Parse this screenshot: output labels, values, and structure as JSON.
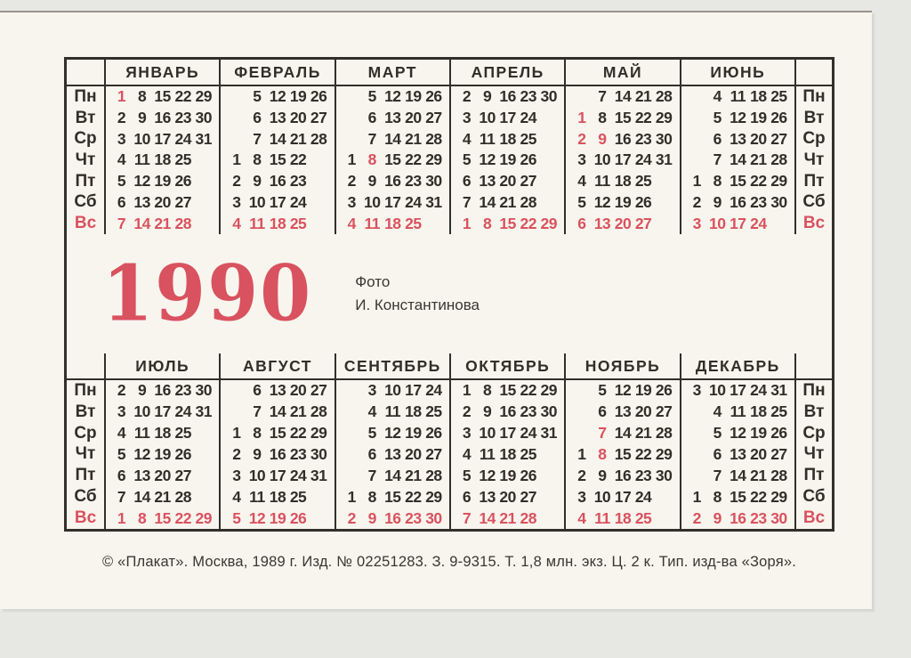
{
  "colors": {
    "accent_red": "#d9525f",
    "ink": "#322e28",
    "card_background": "#f8f5ee"
  },
  "year": "1990",
  "photo_credit": {
    "line1": "Фото",
    "line2": "И. Константинова"
  },
  "footer": {
    "imprint": "© «Плакат». Москва, 1989 г. Изд. № 02251283. З. 9-9315. Т. 1,8 млн. экз. Ц. 2 к. Тип. изд-ва «Зоря»."
  },
  "weekdays": [
    "Пн",
    "Вт",
    "Ср",
    "Чт",
    "Пт",
    "Сб",
    "Вс"
  ],
  "calendar": {
    "top_months": [
      {
        "name": "ЯНВАРЬ",
        "red_days": [
          1
        ],
        "rows": [
          [
            "1",
            "8",
            "15",
            "22",
            "29"
          ],
          [
            "2",
            "9",
            "16",
            "23",
            "30"
          ],
          [
            "3",
            "10",
            "17",
            "24",
            "31"
          ],
          [
            "4",
            "11",
            "18",
            "25",
            ""
          ],
          [
            "5",
            "12",
            "19",
            "26",
            ""
          ],
          [
            "6",
            "13",
            "20",
            "27",
            ""
          ],
          [
            "7",
            "14",
            "21",
            "28",
            ""
          ]
        ]
      },
      {
        "name": "ФЕВРАЛЬ",
        "red_days": [],
        "rows": [
          [
            "",
            "5",
            "12",
            "19",
            "26"
          ],
          [
            "",
            "6",
            "13",
            "20",
            "27"
          ],
          [
            "",
            "7",
            "14",
            "21",
            "28"
          ],
          [
            "1",
            "8",
            "15",
            "22",
            ""
          ],
          [
            "2",
            "9",
            "16",
            "23",
            ""
          ],
          [
            "3",
            "10",
            "17",
            "24",
            ""
          ],
          [
            "4",
            "11",
            "18",
            "25",
            ""
          ]
        ]
      },
      {
        "name": "МАРТ",
        "red_days": [
          8
        ],
        "rows": [
          [
            "",
            "5",
            "12",
            "19",
            "26"
          ],
          [
            "",
            "6",
            "13",
            "20",
            "27"
          ],
          [
            "",
            "7",
            "14",
            "21",
            "28"
          ],
          [
            "1",
            "8",
            "15",
            "22",
            "29"
          ],
          [
            "2",
            "9",
            "16",
            "23",
            "30"
          ],
          [
            "3",
            "10",
            "17",
            "24",
            "31"
          ],
          [
            "4",
            "11",
            "18",
            "25",
            ""
          ]
        ]
      },
      {
        "name": "АПРЕЛЬ",
        "red_days": [],
        "rows": [
          [
            "2",
            "9",
            "16",
            "23",
            "30"
          ],
          [
            "3",
            "10",
            "17",
            "24",
            ""
          ],
          [
            "4",
            "11",
            "18",
            "25",
            ""
          ],
          [
            "5",
            "12",
            "19",
            "26",
            ""
          ],
          [
            "6",
            "13",
            "20",
            "27",
            ""
          ],
          [
            "7",
            "14",
            "21",
            "28",
            ""
          ],
          [
            "1",
            "8",
            "15",
            "22",
            "29"
          ]
        ]
      },
      {
        "name": "МАЙ",
        "red_days": [
          1,
          2,
          9
        ],
        "rows": [
          [
            "",
            "7",
            "14",
            "21",
            "28"
          ],
          [
            "1",
            "8",
            "15",
            "22",
            "29"
          ],
          [
            "2",
            "9",
            "16",
            "23",
            "30"
          ],
          [
            "3",
            "10",
            "17",
            "24",
            "31"
          ],
          [
            "4",
            "11",
            "18",
            "25",
            ""
          ],
          [
            "5",
            "12",
            "19",
            "26",
            ""
          ],
          [
            "6",
            "13",
            "20",
            "27",
            ""
          ]
        ]
      },
      {
        "name": "ИЮНЬ",
        "red_days": [],
        "rows": [
          [
            "",
            "4",
            "11",
            "18",
            "25"
          ],
          [
            "",
            "5",
            "12",
            "19",
            "26"
          ],
          [
            "",
            "6",
            "13",
            "20",
            "27"
          ],
          [
            "",
            "7",
            "14",
            "21",
            "28"
          ],
          [
            "1",
            "8",
            "15",
            "22",
            "29"
          ],
          [
            "2",
            "9",
            "16",
            "23",
            "30"
          ],
          [
            "3",
            "10",
            "17",
            "24",
            ""
          ]
        ]
      }
    ],
    "bottom_months": [
      {
        "name": "ИЮЛЬ",
        "red_days": [],
        "rows": [
          [
            "2",
            "9",
            "16",
            "23",
            "30"
          ],
          [
            "3",
            "10",
            "17",
            "24",
            "31"
          ],
          [
            "4",
            "11",
            "18",
            "25",
            ""
          ],
          [
            "5",
            "12",
            "19",
            "26",
            ""
          ],
          [
            "6",
            "13",
            "20",
            "27",
            ""
          ],
          [
            "7",
            "14",
            "21",
            "28",
            ""
          ],
          [
            "1",
            "8",
            "15",
            "22",
            "29"
          ]
        ]
      },
      {
        "name": "АВГУСТ",
        "red_days": [],
        "rows": [
          [
            "",
            "6",
            "13",
            "20",
            "27"
          ],
          [
            "",
            "7",
            "14",
            "21",
            "28"
          ],
          [
            "1",
            "8",
            "15",
            "22",
            "29"
          ],
          [
            "2",
            "9",
            "16",
            "23",
            "30"
          ],
          [
            "3",
            "10",
            "17",
            "24",
            "31"
          ],
          [
            "4",
            "11",
            "18",
            "25",
            ""
          ],
          [
            "5",
            "12",
            "19",
            "26",
            ""
          ]
        ]
      },
      {
        "name": "СЕНТЯБРЬ",
        "red_days": [],
        "rows": [
          [
            "",
            "3",
            "10",
            "17",
            "24"
          ],
          [
            "",
            "4",
            "11",
            "18",
            "25"
          ],
          [
            "",
            "5",
            "12",
            "19",
            "26"
          ],
          [
            "",
            "6",
            "13",
            "20",
            "27"
          ],
          [
            "",
            "7",
            "14",
            "21",
            "28"
          ],
          [
            "1",
            "8",
            "15",
            "22",
            "29"
          ],
          [
            "2",
            "9",
            "16",
            "23",
            "30"
          ]
        ]
      },
      {
        "name": "ОКТЯБРЬ",
        "red_days": [],
        "rows": [
          [
            "1",
            "8",
            "15",
            "22",
            "29"
          ],
          [
            "2",
            "9",
            "16",
            "23",
            "30"
          ],
          [
            "3",
            "10",
            "17",
            "24",
            "31"
          ],
          [
            "4",
            "11",
            "18",
            "25",
            ""
          ],
          [
            "5",
            "12",
            "19",
            "26",
            ""
          ],
          [
            "6",
            "13",
            "20",
            "27",
            ""
          ],
          [
            "7",
            "14",
            "21",
            "28",
            ""
          ]
        ]
      },
      {
        "name": "НОЯБРЬ",
        "red_days": [
          7,
          8
        ],
        "rows": [
          [
            "",
            "5",
            "12",
            "19",
            "26"
          ],
          [
            "",
            "6",
            "13",
            "20",
            "27"
          ],
          [
            "",
            "7",
            "14",
            "21",
            "28"
          ],
          [
            "1",
            "8",
            "15",
            "22",
            "29"
          ],
          [
            "2",
            "9",
            "16",
            "23",
            "30"
          ],
          [
            "3",
            "10",
            "17",
            "24",
            ""
          ],
          [
            "4",
            "11",
            "18",
            "25",
            ""
          ]
        ]
      },
      {
        "name": "ДЕКАБРЬ",
        "red_days": [],
        "rows": [
          [
            "3",
            "10",
            "17",
            "24",
            "31"
          ],
          [
            "",
            "4",
            "11",
            "18",
            "25"
          ],
          [
            "",
            "5",
            "12",
            "19",
            "26"
          ],
          [
            "",
            "6",
            "13",
            "20",
            "27"
          ],
          [
            "",
            "7",
            "14",
            "21",
            "28"
          ],
          [
            "1",
            "8",
            "15",
            "22",
            "29"
          ],
          [
            "2",
            "9",
            "16",
            "23",
            "30"
          ]
        ]
      }
    ]
  }
}
